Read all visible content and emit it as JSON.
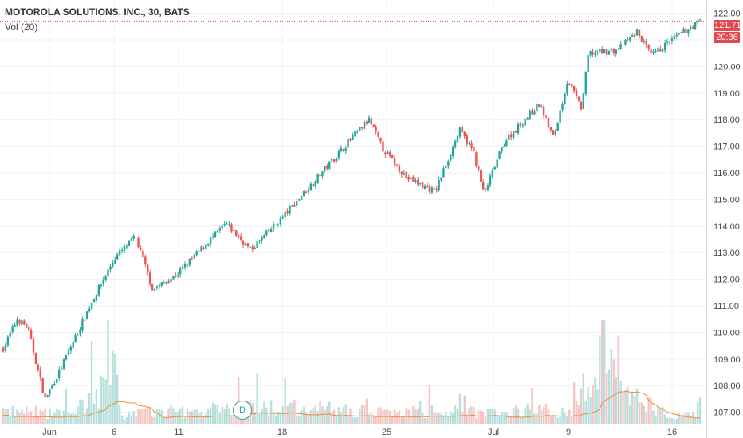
{
  "header": {
    "title": "MOTOROLA SOLUTIONS, INC., 30, BATS",
    "volume_label": "Vol (20)"
  },
  "price_tag": "121.71",
  "time_tag": "20:36",
  "dividend_marker": "D",
  "colors": {
    "up": "#26a69a",
    "down": "#ef5350",
    "vol_up": "#b7e0dc",
    "vol_down": "#f7c4c3",
    "vol_ma": "#ef8a3c",
    "last_price_line": "#e5484d",
    "grid": "#eef1f5"
  },
  "chart_data": {
    "type": "candlestick",
    "title": "MOTOROLA SOLUTIONS, INC., 30, BATS",
    "ylim": [
      106.6,
      122.3
    ],
    "y_ticks": [
      "107.00",
      "108.00",
      "109.00",
      "110.00",
      "111.00",
      "112.00",
      "113.00",
      "114.00",
      "115.00",
      "116.00",
      "117.00",
      "118.00",
      "119.00",
      "120.00",
      "121.00",
      "122.00"
    ],
    "x_ticks": [
      "Jun",
      "6",
      "11",
      "18",
      "25",
      "Jul",
      "9",
      "16"
    ],
    "last_price": 121.71,
    "volume_indicator": "Vol (20)",
    "grid": true,
    "close_path": [
      {
        "t": 0.0,
        "p": 109.4
      },
      {
        "t": 0.02,
        "p": 110.5
      },
      {
        "t": 0.035,
        "p": 110.2
      },
      {
        "t": 0.06,
        "p": 107.5
      },
      {
        "t": 0.08,
        "p": 108.5
      },
      {
        "t": 0.13,
        "p": 111.3
      },
      {
        "t": 0.16,
        "p": 112.8
      },
      {
        "t": 0.19,
        "p": 113.6
      },
      {
        "t": 0.215,
        "p": 111.6
      },
      {
        "t": 0.25,
        "p": 112.2
      },
      {
        "t": 0.32,
        "p": 114.1
      },
      {
        "t": 0.355,
        "p": 113.1
      },
      {
        "t": 0.4,
        "p": 114.3
      },
      {
        "t": 0.44,
        "p": 115.5
      },
      {
        "t": 0.5,
        "p": 117.3
      },
      {
        "t": 0.525,
        "p": 118.0
      },
      {
        "t": 0.545,
        "p": 116.9
      },
      {
        "t": 0.58,
        "p": 115.8
      },
      {
        "t": 0.62,
        "p": 115.3
      },
      {
        "t": 0.655,
        "p": 117.6
      },
      {
        "t": 0.675,
        "p": 116.8
      },
      {
        "t": 0.69,
        "p": 115.2
      },
      {
        "t": 0.72,
        "p": 117.2
      },
      {
        "t": 0.77,
        "p": 118.6
      },
      {
        "t": 0.79,
        "p": 117.3
      },
      {
        "t": 0.81,
        "p": 119.5
      },
      {
        "t": 0.83,
        "p": 118.4
      },
      {
        "t": 0.84,
        "p": 120.5
      },
      {
        "t": 0.88,
        "p": 120.6
      },
      {
        "t": 0.91,
        "p": 121.3
      },
      {
        "t": 0.93,
        "p": 120.4
      },
      {
        "t": 0.96,
        "p": 121.0
      },
      {
        "t": 1.0,
        "p": 121.71
      }
    ],
    "volume_profile": [
      {
        "t": 0.0,
        "v": 0.15
      },
      {
        "t": 0.1,
        "v": 0.12
      },
      {
        "t": 0.16,
        "v": 0.6
      },
      {
        "t": 0.17,
        "v": 0.12
      },
      {
        "t": 0.4,
        "v": 0.2
      },
      {
        "t": 0.55,
        "v": 0.14
      },
      {
        "t": 0.82,
        "v": 0.15
      },
      {
        "t": 0.86,
        "v": 0.95
      },
      {
        "t": 0.88,
        "v": 0.5
      },
      {
        "t": 0.92,
        "v": 0.25
      },
      {
        "t": 0.96,
        "v": 0.12
      },
      {
        "t": 1.0,
        "v": 0.1
      }
    ]
  }
}
